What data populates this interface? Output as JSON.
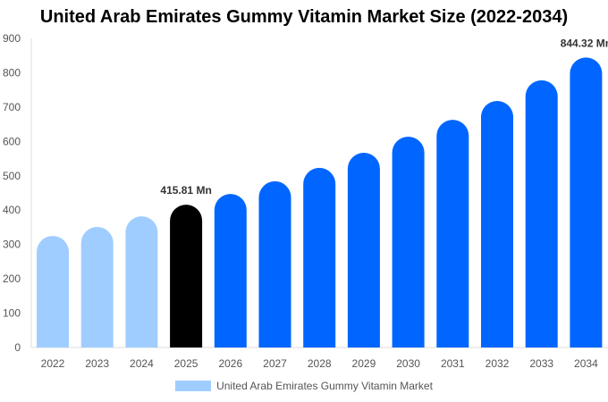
{
  "chart_data": {
    "type": "bar",
    "title": "United Arab Emirates Gummy Vitamin Market Size (2022-2034)",
    "categories": [
      "2022",
      "2023",
      "2024",
      "2025",
      "2026",
      "2027",
      "2028",
      "2029",
      "2030",
      "2031",
      "2032",
      "2033",
      "2034"
    ],
    "series": [
      {
        "name": "United Arab Emirates Gummy Vitamin Market",
        "values": [
          325,
          351,
          382,
          415.81,
          447,
          484,
          523,
          567,
          614,
          663,
          718,
          778,
          844.32
        ]
      }
    ],
    "data_labels": {
      "3": "415.81 Mn",
      "12": "844.32 Mn"
    },
    "ylim": [
      0,
      900
    ],
    "yticks": [
      0,
      100,
      200,
      300,
      400,
      500,
      600,
      700,
      800,
      900
    ],
    "xlabel": "",
    "ylabel": "",
    "grid": false,
    "legend": "bottom",
    "colors": {
      "historical": "#a0cdff",
      "current": "#000000",
      "forecast": "#0066ff"
    }
  }
}
